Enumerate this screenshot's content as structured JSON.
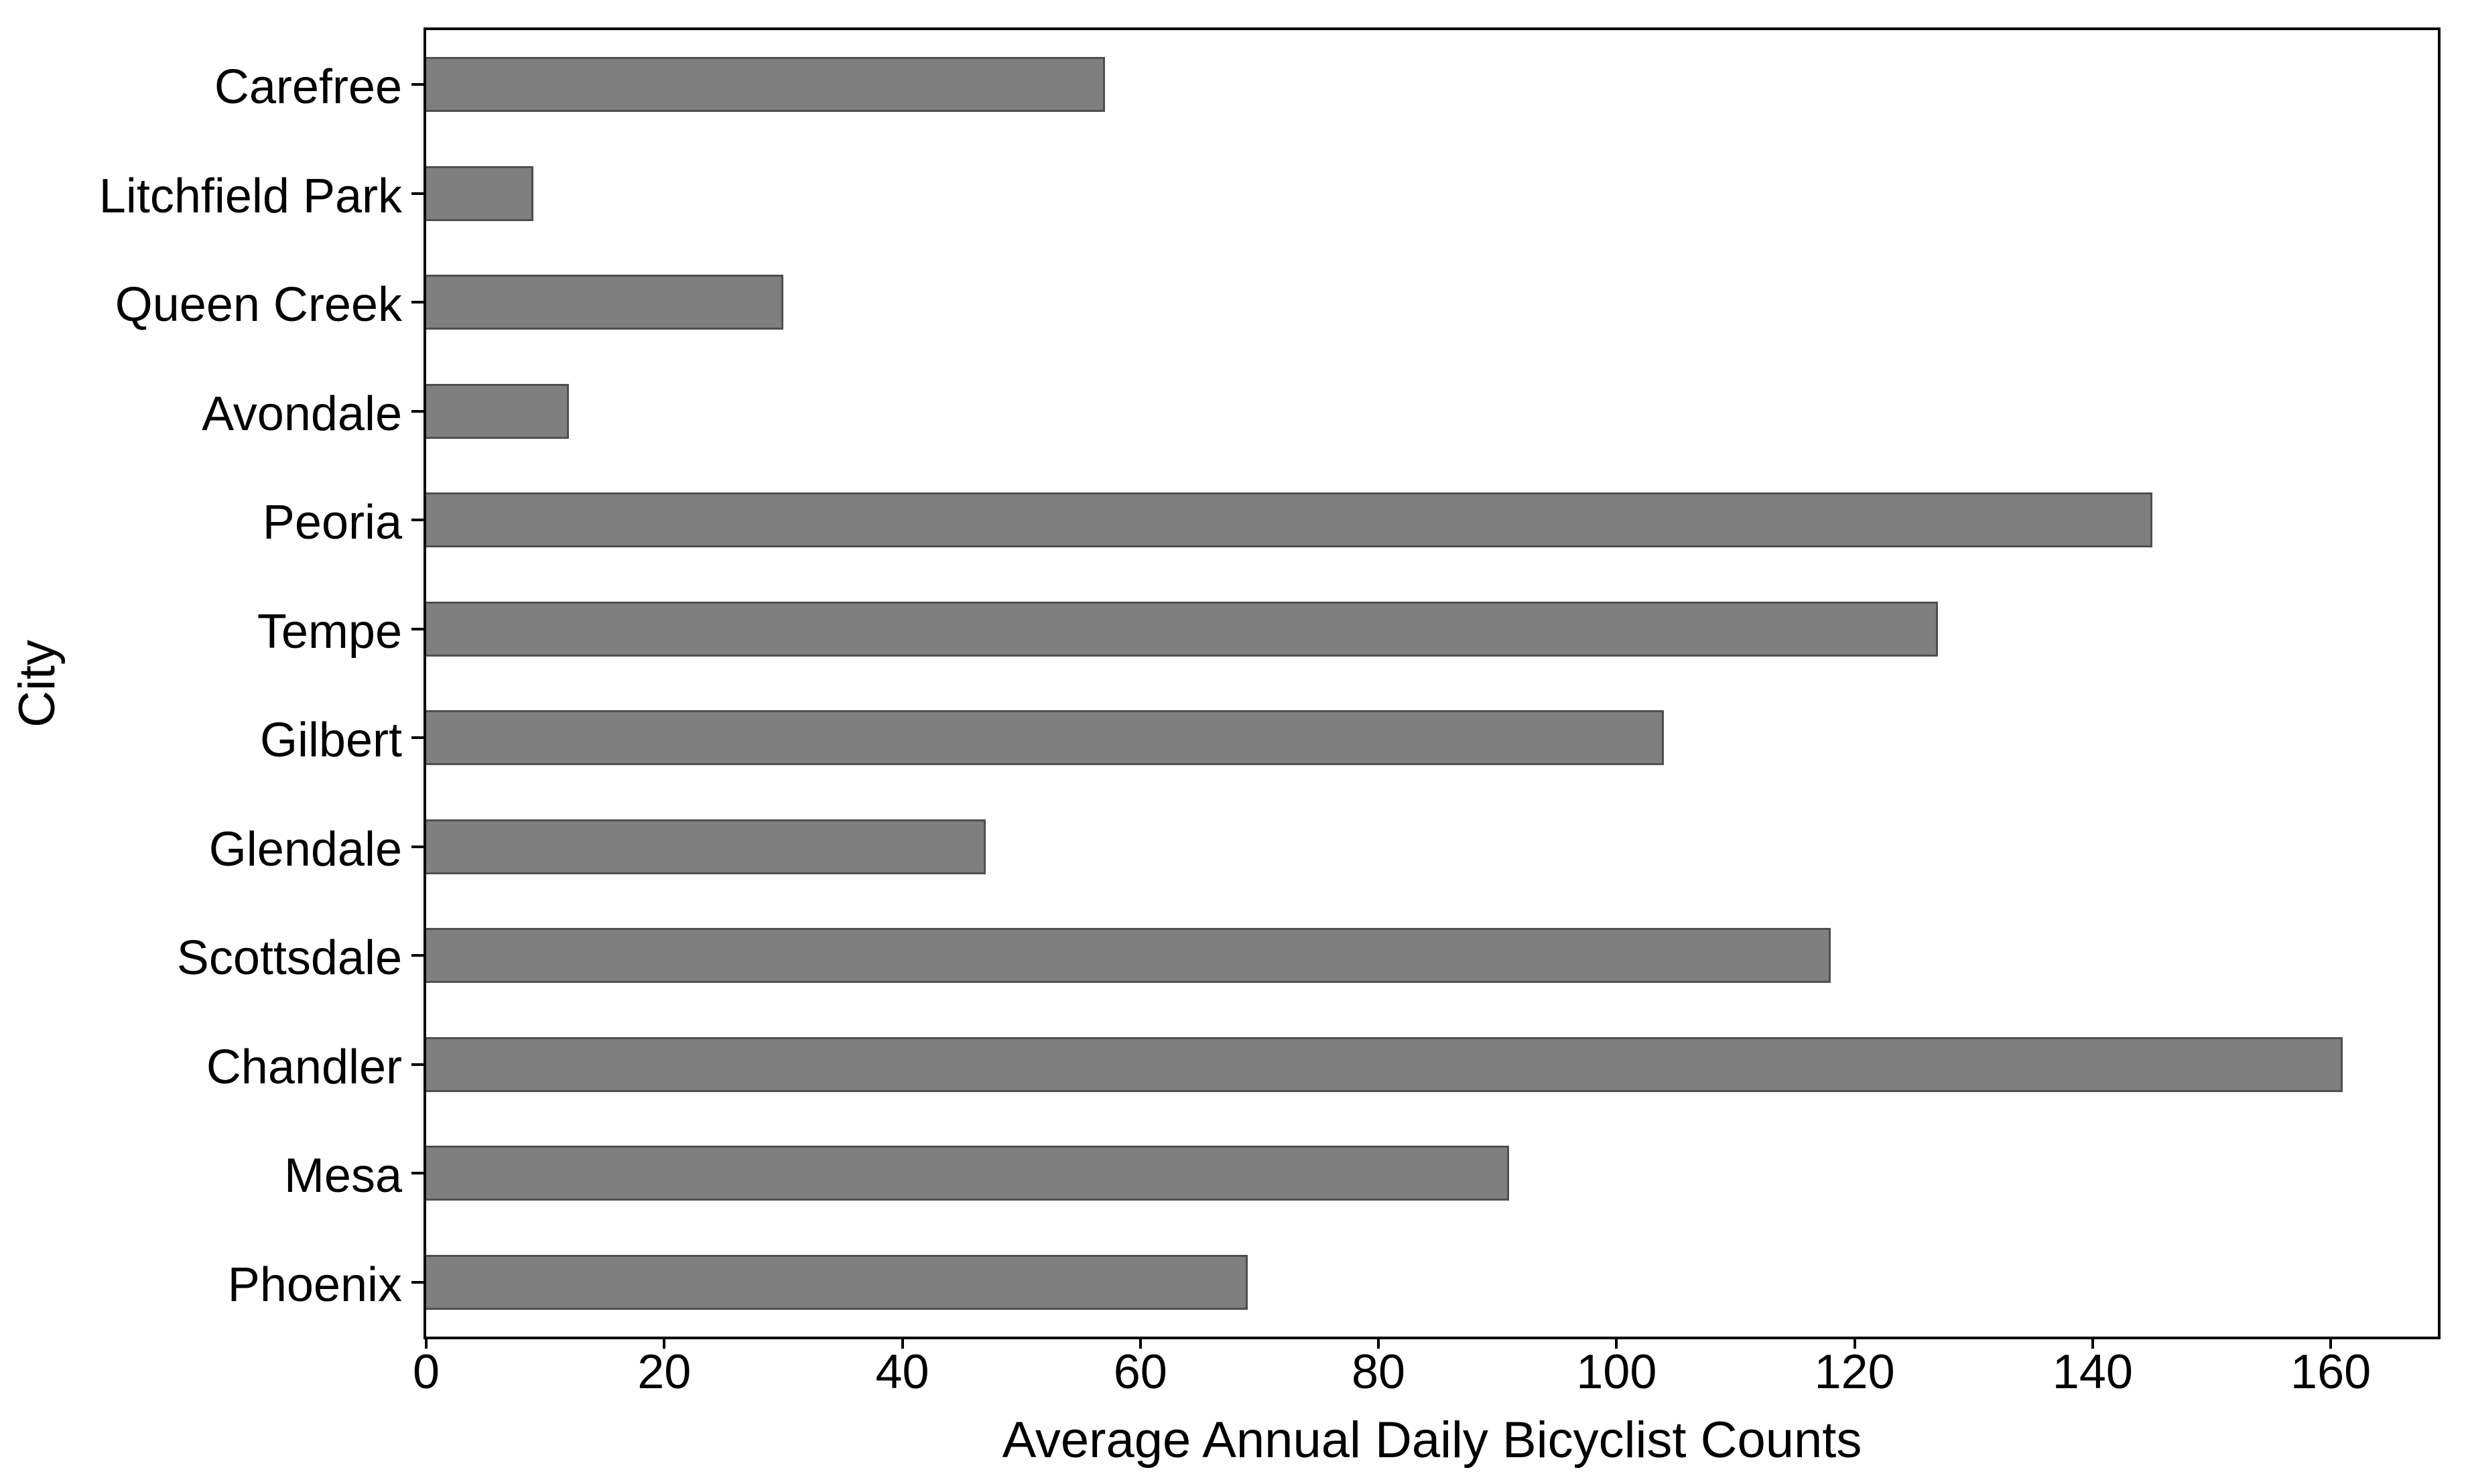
{
  "chart_data": {
    "type": "bar",
    "orientation": "horizontal",
    "title": "",
    "xlabel": "Average Annual Daily Bicyclist Counts",
    "ylabel": "City",
    "categories": [
      "Carefree",
      "Litchfield Park",
      "Queen Creek",
      "Avondale",
      "Peoria",
      "Tempe",
      "Gilbert",
      "Glendale",
      "Scottsdale",
      "Chandler",
      "Mesa",
      "Phoenix"
    ],
    "values": [
      57,
      9,
      30,
      12,
      145,
      127,
      104,
      47,
      118,
      161,
      91,
      69
    ],
    "x_ticks": [
      0,
      20,
      40,
      60,
      80,
      100,
      120,
      140,
      160
    ],
    "xlim": [
      0,
      169
    ],
    "grid": false,
    "legend": null,
    "bar_fill_color": "#7f7f7f",
    "bar_border_color": "#4f4f4f",
    "axis_color": "#000000",
    "text_color": "#000000",
    "background_color": "#ffffff"
  }
}
